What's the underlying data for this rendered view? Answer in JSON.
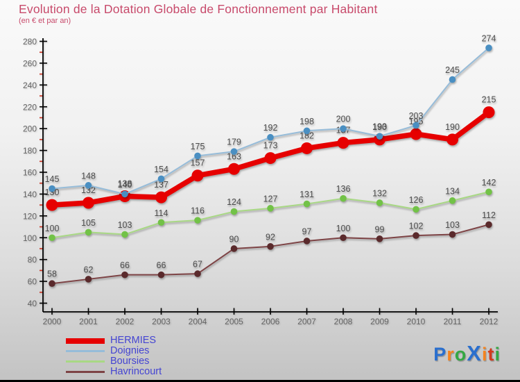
{
  "header": {
    "title": "Evolution de la Dotation Globale de Fonctionnement par Habitant",
    "subtitle": "(en € et par an)",
    "title_color": "#c84a6b"
  },
  "chart_data": {
    "type": "line",
    "title": "Evolution de la Dotation Globale de Fonctionnement par Habitant",
    "subtitle": "(en € et par an)",
    "x": [
      2000,
      2001,
      2002,
      2003,
      2004,
      2005,
      2006,
      2007,
      2008,
      2009,
      2010,
      2011,
      2012
    ],
    "series": [
      {
        "name": "HERMIES",
        "values": [
          130,
          132,
          138,
          137,
          157,
          163,
          173,
          182,
          187,
          190,
          195,
          190,
          215
        ],
        "line_color": "#e60000",
        "marker_color": "#e60000",
        "thick": true
      },
      {
        "name": "Doignies",
        "values": [
          145,
          148,
          140,
          154,
          175,
          179,
          192,
          198,
          200,
          193,
          203,
          245,
          274
        ],
        "line_color": "#96bcd9",
        "marker_color": "#4a8fc2",
        "thick": false
      },
      {
        "name": "Boursies",
        "values": [
          100,
          105,
          103,
          114,
          116,
          124,
          127,
          131,
          136,
          132,
          126,
          134,
          142
        ],
        "line_color": "#a8d884",
        "marker_color": "#72c247",
        "thick": false
      },
      {
        "name": "Havrincourt",
        "values": [
          58,
          62,
          66,
          66,
          67,
          90,
          92,
          97,
          100,
          99,
          102,
          103,
          112
        ],
        "line_color": "#7d4345",
        "marker_color": "#5a2a2c",
        "thick": false
      }
    ],
    "ylim": [
      40,
      280
    ],
    "ytick_step": 20,
    "yminor_step": 10,
    "grid": false,
    "legend_position": "bottom-left",
    "axis_color": "#000000",
    "minor_tick_color": "#cc3322",
    "tick_label_color": "#646464",
    "point_label_color": "#4d4d4d"
  },
  "legend": {
    "items": [
      "HERMIES",
      "Doignies",
      "Boursies",
      "Havrincourt"
    ],
    "text_color": "#4444d2"
  },
  "logo": {
    "name": "Proxiti",
    "letters": [
      {
        "ch": "P",
        "color": "#2a6fce",
        "big": false
      },
      {
        "ch": "r",
        "color": "#f5831f",
        "big": false
      },
      {
        "ch": "o",
        "color": "#35a843",
        "big": false
      },
      {
        "ch": "X",
        "color": "#2a6fce",
        "big": true
      },
      {
        "ch": "i",
        "color": "#f5831f",
        "big": false
      },
      {
        "ch": "t",
        "color": "#d23b1e",
        "big": false
      },
      {
        "ch": "i",
        "color": "#35a843",
        "big": false
      }
    ]
  }
}
